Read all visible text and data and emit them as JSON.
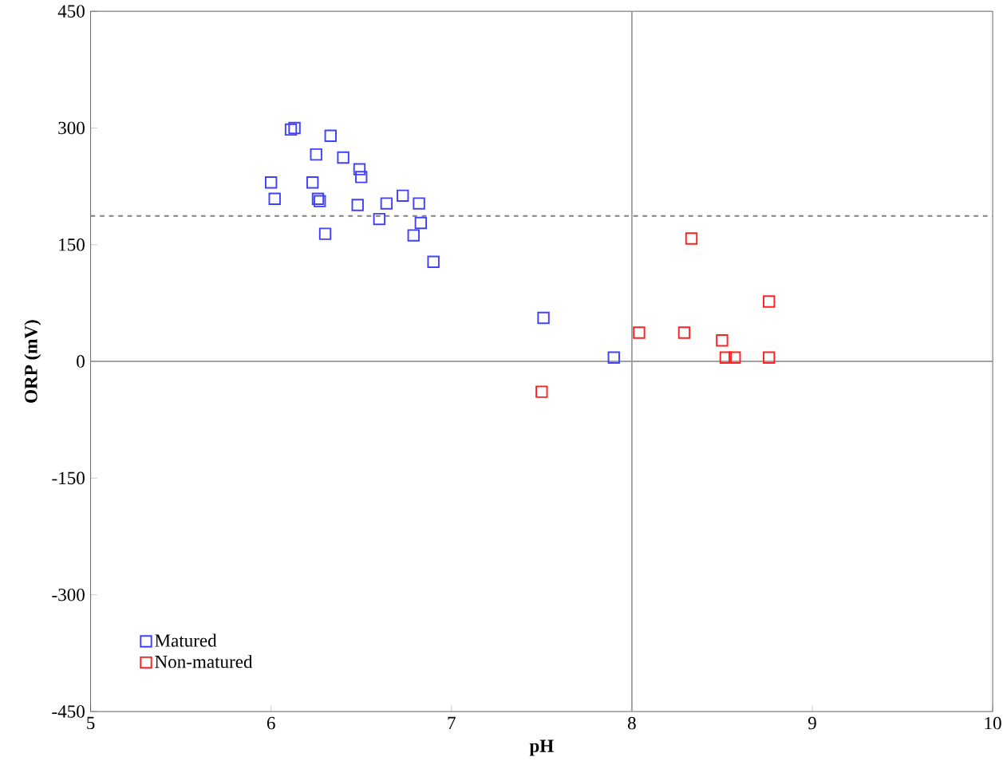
{
  "chart_data": {
    "type": "scatter",
    "xlabel": "pH",
    "ylabel": "ORP (mV)",
    "xlim": [
      5,
      10
    ],
    "xticks": [
      5,
      6,
      7,
      8,
      9,
      10
    ],
    "ylim": [
      -450,
      450
    ],
    "yticks": [
      -450,
      -300,
      -150,
      0,
      150,
      300,
      450
    ],
    "marker": "square",
    "legend": "bottom left",
    "grid": false,
    "ref_lines": [
      {
        "axis": "y",
        "value": 187,
        "color": "#808080",
        "line_style": "dashed"
      },
      {
        "axis": "y",
        "value": 0,
        "color": "#a0a0a0",
        "line_style": "solid"
      },
      {
        "axis": "x",
        "value": 8,
        "color": "#a0a0a0",
        "line_style": "solid"
      }
    ],
    "series": [
      {
        "name": "Matured",
        "color": "#4040ff",
        "x": [
          6.11,
          6.13,
          6.33,
          6.25,
          6.4,
          6.49,
          6.5,
          6.0,
          6.02,
          6.23,
          6.26,
          6.27,
          6.48,
          6.3,
          6.6,
          6.64,
          6.73,
          6.82,
          6.83,
          6.79,
          6.9,
          7.51,
          7.9
        ],
        "values": [
          298,
          300,
          290,
          266,
          262,
          247,
          237,
          230,
          209,
          230,
          209,
          206,
          201,
          164,
          183,
          203,
          213,
          203,
          178,
          162,
          128,
          56,
          5
        ]
      },
      {
        "name": "Non-matured",
        "color": "#ff2020",
        "x": [
          8.33,
          8.76,
          8.04,
          8.29,
          8.5,
          8.52,
          8.57,
          8.76,
          7.5
        ],
        "values": [
          158,
          77,
          37,
          37,
          27,
          5,
          5,
          5,
          -39
        ]
      }
    ]
  }
}
